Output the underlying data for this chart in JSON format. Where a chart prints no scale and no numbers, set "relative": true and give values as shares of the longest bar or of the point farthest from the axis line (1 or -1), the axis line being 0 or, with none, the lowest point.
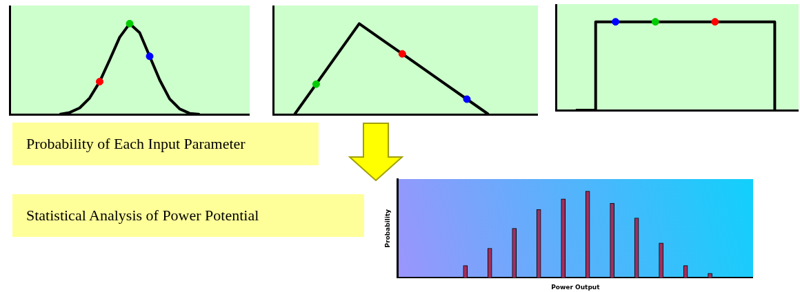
{
  "chart_data": [
    {
      "type": "line",
      "relative": true,
      "categories": [
        null,
        null,
        null,
        null,
        null,
        null,
        null,
        null,
        null,
        null,
        null,
        null,
        null,
        null,
        null
      ],
      "series": [
        {
          "color": "#000000",
          "values": [
            0,
            0.02,
            0.07,
            0.18,
            0.36,
            0.6,
            0.85,
            1,
            0.9,
            0.64,
            0.38,
            0.17,
            0.06,
            0.01,
            0
          ],
          "colors": [
            null,
            null,
            null,
            null,
            "#ff0000",
            null,
            null,
            "#00cc00",
            null,
            "#0000ff",
            null,
            null,
            null,
            null,
            null
          ]
        }
      ]
    },
    {
      "type": "line",
      "relative": true,
      "categories": [
        null,
        null,
        null,
        null,
        null,
        null,
        null,
        null,
        null,
        null
      ],
      "series": [
        {
          "color": "#000000",
          "values": [
            0,
            0.333,
            0.667,
            1,
            0.833,
            0.667,
            0.5,
            0.333,
            0.167,
            0
          ],
          "colors": [
            null,
            "#00cc00",
            null,
            null,
            null,
            "#ff0000",
            null,
            null,
            "#0000ff",
            null
          ]
        }
      ]
    },
    {
      "type": "step",
      "relative": true,
      "categories": [
        null,
        null,
        null,
        null,
        null,
        null,
        null,
        null,
        null,
        null,
        null
      ],
      "series": [
        {
          "color": "#000000",
          "values": [
            0,
            1,
            1,
            1,
            1,
            1,
            1,
            1,
            1,
            1,
            0
          ],
          "colors": [
            null,
            null,
            "#0000ff",
            null,
            "#00cc00",
            null,
            null,
            "#ff0000",
            null,
            null,
            null
          ]
        }
      ]
    },
    {
      "type": "bar",
      "relative": true,
      "xlabel": "Power Output",
      "ylabel": "Probability",
      "color": "#a03060",
      "categories": [
        null,
        null,
        null,
        null,
        null,
        null,
        null,
        null,
        null,
        null,
        null
      ],
      "values": [
        0.14,
        0.34,
        0.57,
        0.79,
        0.91,
        1,
        0.86,
        0.69,
        0.4,
        0.14,
        0.05
      ]
    },
    {
      "type": "other",
      "annotations": [
        "Probability of Each Input Parameter",
        "Statistical Analysis of Power Potential"
      ]
    }
  ]
}
